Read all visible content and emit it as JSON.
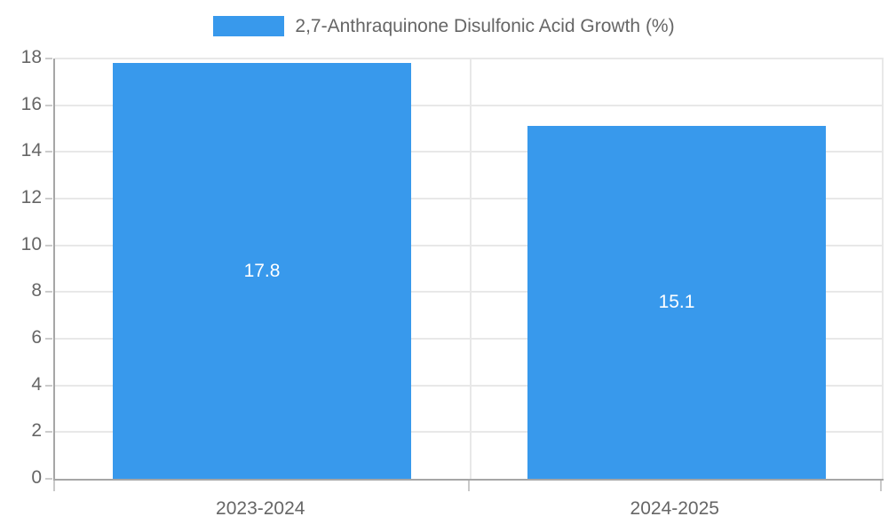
{
  "chart_data": {
    "type": "bar",
    "title": "2,7-Anthraquinone Disulfonic Acid Growth (%)",
    "categories": [
      "2023-2024",
      "2024-2025"
    ],
    "values": [
      17.8,
      15.1
    ],
    "value_labels": [
      "17.8",
      "15.1"
    ],
    "xlabel": "",
    "ylabel": "",
    "ylim": [
      0,
      18
    ],
    "yticks": [
      0,
      2,
      4,
      6,
      8,
      10,
      12,
      14,
      16,
      18
    ],
    "grid": true,
    "legend_position": "top"
  },
  "colors": {
    "bar_fill": "#3899EC",
    "value_label_text": "#ffffff",
    "tick_text": "#666666",
    "legend_text": "#666666",
    "gridline": "#e8e8e8",
    "axis_line": "#a6a6a6",
    "background": "#ffffff"
  }
}
